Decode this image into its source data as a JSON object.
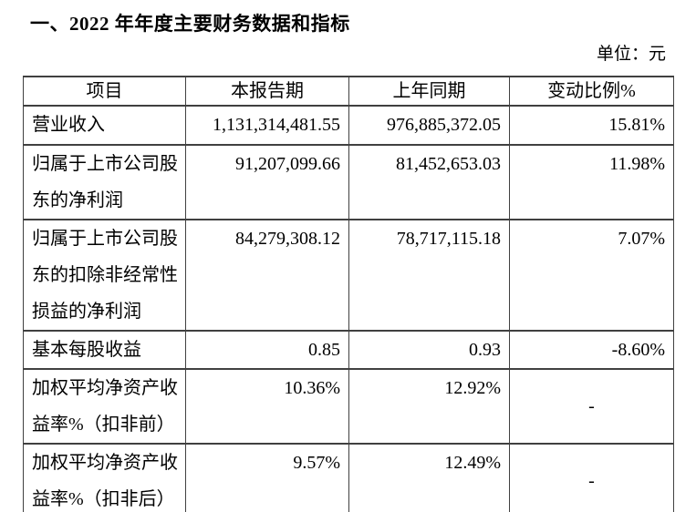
{
  "document": {
    "title": "一、2022 年年度主要财务数据和指标",
    "unit_label": "单位：元"
  },
  "table": {
    "headers": [
      "项目",
      "本报告期",
      "上年同期",
      "变动比例%"
    ],
    "rows": [
      {
        "item": "营业收入",
        "current": "1,131,314,481.55",
        "prior": "976,885,372.05",
        "change": "15.81%"
      },
      {
        "item": "归属于上市公司股东的净利润",
        "current": "91,207,099.66",
        "prior": "81,452,653.03",
        "change": "11.98%"
      },
      {
        "item": "归属于上市公司股东的扣除非经常性损益的净利润",
        "current": "84,279,308.12",
        "prior": "78,717,115.18",
        "change": "7.07%"
      },
      {
        "item": "基本每股收益",
        "current": "0.85",
        "prior": "0.93",
        "change": "-8.60%"
      },
      {
        "item": "加权平均净资产收益率%（扣非前）",
        "current": "10.36%",
        "prior": "12.92%",
        "change": "-"
      },
      {
        "item": "加权平均净资产收益率%（扣非后）",
        "current": "9.57%",
        "prior": "12.49%",
        "change": "-"
      }
    ]
  },
  "colors": {
    "text": "#000000",
    "border": "#404040",
    "background": "#ffffff"
  }
}
